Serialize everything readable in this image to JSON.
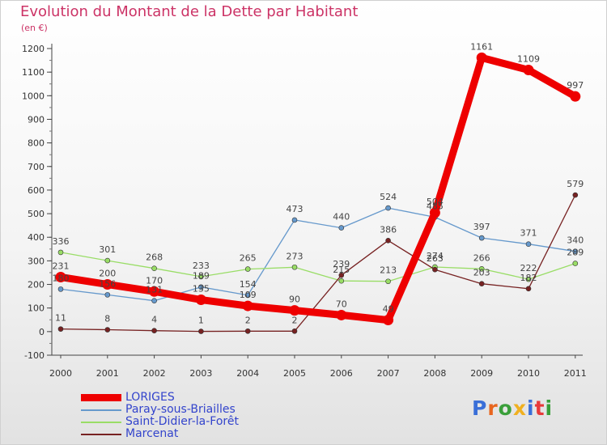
{
  "title": "Evolution du Montant de la Dette par Habitant",
  "unit_label": "(en €)",
  "logo": {
    "text": "Proxiti",
    "letter_colors": [
      "#3a6fd8",
      "#e8661f",
      "#3a9f3a",
      "#f0b020",
      "#3a6fd8",
      "#e83a3a",
      "#3a9f3a"
    ]
  },
  "chart_data": {
    "type": "line",
    "title": "Evolution du Montant de la Dette par Habitant",
    "subtitle": "(en €)",
    "categories": [
      "2000",
      "2001",
      "2002",
      "2003",
      "2004",
      "2005",
      "2006",
      "2007",
      "2008",
      "2009",
      "2010",
      "2011"
    ],
    "ylim": [
      -100,
      1200
    ],
    "yticks": [
      -100,
      0,
      100,
      200,
      300,
      400,
      500,
      600,
      700,
      800,
      900,
      1000,
      1100,
      1200
    ],
    "grid": false,
    "legend_position": "bottom-left",
    "series": [
      {
        "name": "LORIGES",
        "color": "#ee0000",
        "values": [
          231,
          200,
          170,
          135,
          109,
          90,
          70,
          49,
          504,
          1161,
          1109,
          997
        ],
        "value_labels": [
          "231",
          "200",
          "170",
          "135",
          "109",
          "90",
          "70",
          "49",
          "504",
          "1161",
          "1109",
          "997"
        ],
        "thick": true
      },
      {
        "name": "Paray-sous-Briailles",
        "color": "#6699cc",
        "values": [
          180,
          156,
          131,
          189,
          154,
          473,
          440,
          524,
          485,
          397,
          371,
          340
        ],
        "value_labels": [
          "180",
          "156",
          "131",
          "189",
          "154",
          "473",
          "440",
          "524",
          "485",
          "397",
          "371",
          "340"
        ],
        "thick": false
      },
      {
        "name": "Saint-Didier-la-Forêt",
        "color": "#99dd66",
        "values": [
          336,
          301,
          268,
          233,
          265,
          273,
          215,
          213,
          274,
          266,
          222,
          289
        ],
        "value_labels": [
          "336",
          "301",
          "268",
          "233",
          "265",
          "273",
          "215",
          "213",
          "274",
          "266",
          "222",
          "289"
        ],
        "thick": false
      },
      {
        "name": "Marcenat",
        "color": "#772222",
        "values": [
          11,
          8,
          4,
          1,
          2,
          2,
          239,
          386,
          263,
          203,
          182,
          579
        ],
        "value_labels": [
          "11",
          "8",
          "4",
          "1",
          "2",
          "2",
          "239",
          "386",
          "263",
          "203",
          "182",
          "579"
        ],
        "thick": false
      }
    ]
  }
}
